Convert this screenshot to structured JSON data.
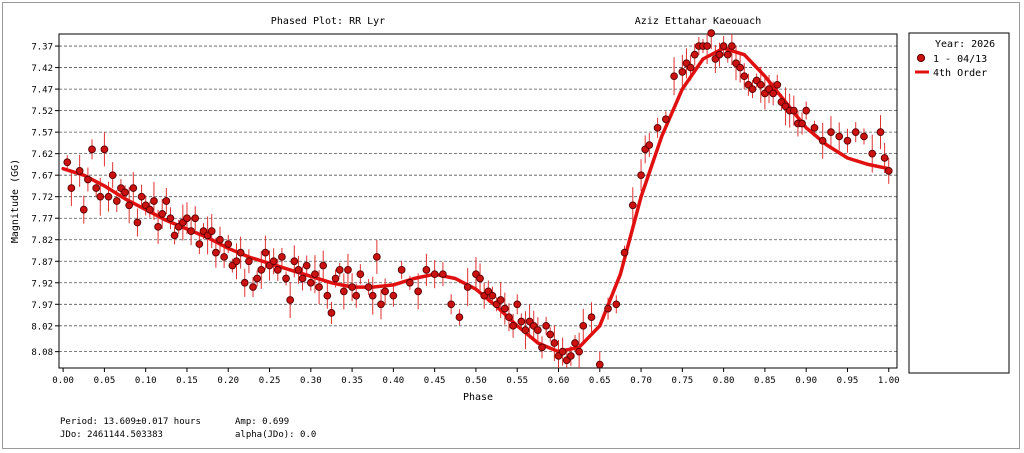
{
  "chart_data": {
    "type": "scatter",
    "title": "Phased Plot: RR Lyr",
    "subtitle": "Aziz Ettahar Kaeouach",
    "xlabel": "Phase",
    "ylabel": "Magnitude (GG)",
    "xlim": [
      -0.005,
      1.01
    ],
    "ylim": [
      8.118,
      7.342
    ],
    "y_inverted": true,
    "grid": true,
    "legend_position": "right",
    "x_ticks": [
      "0.00",
      "0.05",
      "0.10",
      "0.15",
      "0.20",
      "0.25",
      "0.30",
      "0.35",
      "0.40",
      "0.45",
      "0.50",
      "0.55",
      "0.60",
      "0.65",
      "0.70",
      "0.75",
      "0.80",
      "0.85",
      "0.90",
      "0.95",
      "1.00"
    ],
    "y_ticks": [
      "7.37",
      "7.42",
      "7.47",
      "7.52",
      "7.57",
      "7.62",
      "7.67",
      "7.72",
      "7.77",
      "7.82",
      "7.87",
      "7.92",
      "7.97",
      "8.02",
      "8.08"
    ],
    "legend": {
      "title": "Year: 2026",
      "entries": [
        "1 - 04/13",
        "4th Order"
      ]
    },
    "series": [
      {
        "name": "1 - 04/13",
        "marker": "circle",
        "color": "#cc1111",
        "x": [
          0.005,
          0.01,
          0.02,
          0.025,
          0.03,
          0.035,
          0.04,
          0.045,
          0.05,
          0.055,
          0.06,
          0.065,
          0.07,
          0.075,
          0.08,
          0.085,
          0.09,
          0.095,
          0.1,
          0.105,
          0.11,
          0.115,
          0.12,
          0.125,
          0.13,
          0.135,
          0.14,
          0.145,
          0.15,
          0.155,
          0.16,
          0.165,
          0.17,
          0.175,
          0.18,
          0.185,
          0.19,
          0.195,
          0.2,
          0.205,
          0.21,
          0.215,
          0.22,
          0.225,
          0.23,
          0.235,
          0.24,
          0.245,
          0.25,
          0.255,
          0.26,
          0.265,
          0.27,
          0.275,
          0.28,
          0.285,
          0.29,
          0.295,
          0.3,
          0.305,
          0.31,
          0.315,
          0.32,
          0.325,
          0.33,
          0.335,
          0.34,
          0.345,
          0.35,
          0.355,
          0.36,
          0.37,
          0.375,
          0.38,
          0.385,
          0.39,
          0.4,
          0.41,
          0.42,
          0.43,
          0.44,
          0.45,
          0.46,
          0.47,
          0.48,
          0.49,
          0.5,
          0.505,
          0.51,
          0.515,
          0.52,
          0.525,
          0.53,
          0.535,
          0.54,
          0.545,
          0.55,
          0.555,
          0.56,
          0.565,
          0.57,
          0.575,
          0.58,
          0.585,
          0.59,
          0.595,
          0.6,
          0.605,
          0.61,
          0.615,
          0.62,
          0.625,
          0.63,
          0.64,
          0.65,
          0.66,
          0.67,
          0.68,
          0.69,
          0.7,
          0.705,
          0.71,
          0.72,
          0.73,
          0.74,
          0.75,
          0.755,
          0.76,
          0.765,
          0.77,
          0.775,
          0.78,
          0.785,
          0.79,
          0.795,
          0.8,
          0.805,
          0.81,
          0.815,
          0.82,
          0.825,
          0.83,
          0.835,
          0.84,
          0.845,
          0.85,
          0.855,
          0.86,
          0.865,
          0.87,
          0.875,
          0.88,
          0.885,
          0.89,
          0.895,
          0.9,
          0.91,
          0.92,
          0.93,
          0.94,
          0.95,
          0.96,
          0.97,
          0.98,
          0.99,
          0.995,
          1.0
        ],
        "y": [
          7.64,
          7.7,
          7.66,
          7.75,
          7.68,
          7.61,
          7.7,
          7.72,
          7.61,
          7.72,
          7.67,
          7.73,
          7.7,
          7.71,
          7.74,
          7.7,
          7.78,
          7.72,
          7.74,
          7.75,
          7.73,
          7.79,
          7.76,
          7.73,
          7.77,
          7.81,
          7.79,
          7.78,
          7.77,
          7.8,
          7.77,
          7.83,
          7.8,
          7.81,
          7.8,
          7.85,
          7.82,
          7.86,
          7.83,
          7.88,
          7.87,
          7.85,
          7.92,
          7.87,
          7.93,
          7.91,
          7.89,
          7.85,
          7.88,
          7.87,
          7.89,
          7.86,
          7.91,
          7.96,
          7.87,
          7.89,
          7.91,
          7.88,
          7.92,
          7.9,
          7.93,
          7.88,
          7.95,
          7.99,
          7.91,
          7.89,
          7.94,
          7.89,
          7.93,
          7.95,
          7.9,
          7.93,
          7.95,
          7.86,
          7.97,
          7.94,
          7.95,
          7.89,
          7.92,
          7.94,
          7.89,
          7.9,
          7.9,
          7.97,
          8.0,
          7.93,
          7.9,
          7.91,
          7.95,
          7.94,
          7.95,
          7.97,
          7.96,
          7.98,
          8.0,
          8.02,
          7.97,
          8.01,
          8.03,
          8.01,
          8.02,
          8.03,
          8.07,
          8.02,
          8.04,
          8.06,
          8.09,
          8.08,
          8.1,
          8.09,
          8.06,
          8.08,
          8.02,
          8.0,
          8.11,
          7.98,
          7.97,
          7.85,
          7.74,
          7.67,
          7.61,
          7.6,
          7.56,
          7.54,
          7.44,
          7.43,
          7.41,
          7.42,
          7.39,
          7.37,
          7.37,
          7.37,
          7.34,
          7.4,
          7.39,
          7.37,
          7.39,
          7.37,
          7.41,
          7.42,
          7.44,
          7.46,
          7.47,
          7.45,
          7.46,
          7.48,
          7.47,
          7.48,
          7.46,
          7.5,
          7.51,
          7.52,
          7.52,
          7.55,
          7.55,
          7.52,
          7.56,
          7.59,
          7.57,
          7.58,
          7.59,
          7.57,
          7.58,
          7.62,
          7.57,
          7.63,
          7.66
        ]
      },
      {
        "name": "4th Order",
        "type": "line",
        "color": "#e01010",
        "x": [
          0.0,
          0.025,
          0.05,
          0.075,
          0.1,
          0.125,
          0.15,
          0.175,
          0.2,
          0.225,
          0.25,
          0.275,
          0.3,
          0.325,
          0.35,
          0.375,
          0.4,
          0.425,
          0.45,
          0.475,
          0.5,
          0.525,
          0.55,
          0.575,
          0.6,
          0.625,
          0.65,
          0.675,
          0.7,
          0.725,
          0.75,
          0.775,
          0.8,
          0.825,
          0.85,
          0.875,
          0.9,
          0.925,
          0.95,
          0.975,
          1.0
        ],
        "y": [
          7.655,
          7.67,
          7.695,
          7.725,
          7.75,
          7.775,
          7.795,
          7.815,
          7.84,
          7.86,
          7.875,
          7.89,
          7.905,
          7.92,
          7.93,
          7.93,
          7.925,
          7.91,
          7.9,
          7.91,
          7.935,
          7.975,
          8.02,
          8.06,
          8.08,
          8.07,
          8.02,
          7.9,
          7.72,
          7.58,
          7.47,
          7.4,
          7.375,
          7.39,
          7.44,
          7.5,
          7.56,
          7.6,
          7.63,
          7.645,
          7.655
        ]
      }
    ]
  },
  "footer": {
    "period": "Period: 13.609±0.017 hours",
    "amp": "Amp: 0.699",
    "jdo": "JDo: 2461144.503383",
    "alpha": "alpha(JDo): 0.0"
  }
}
